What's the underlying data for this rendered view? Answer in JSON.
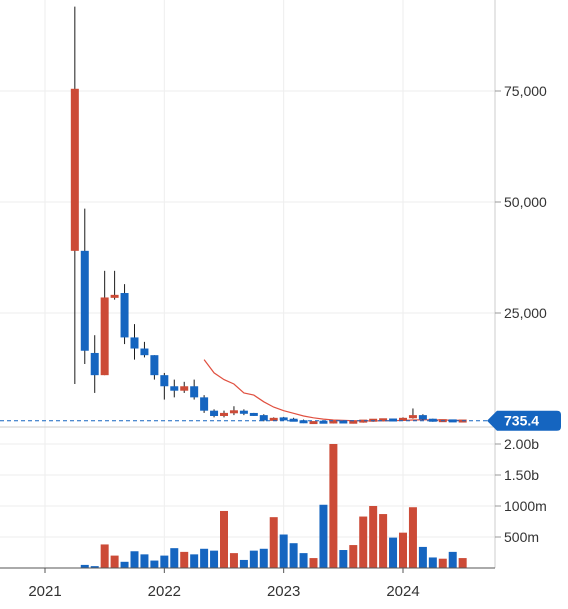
{
  "chart_data": {
    "type": "candlestick",
    "title": "",
    "colors": {
      "up": "#cc4b37",
      "down": "#1565c0",
      "ma": "#e05040",
      "last": "#1565c0",
      "grid": "#eeeeee",
      "axis": "#cccccc"
    },
    "last_price": 735.4,
    "last_price_label": "735.4",
    "price_axis": {
      "ticks": [
        25000,
        50000,
        75000
      ],
      "labels": [
        "25,000",
        "50,000",
        "75,000"
      ],
      "range": [
        0,
        95000
      ]
    },
    "volume_axis": {
      "ticks": [
        500000000,
        1000000000,
        1500000000,
        2000000000
      ],
      "labels": [
        "500m",
        "1000m",
        "1.50b",
        "2.00b"
      ],
      "range": [
        0,
        2050000000
      ]
    },
    "x_axis": {
      "ticks": [
        "2021-01",
        "2022-01",
        "2023-01",
        "2024-01"
      ],
      "labels": [
        "2021",
        "2022",
        "2023",
        "2024"
      ],
      "range": [
        "2020-09",
        "2024-09"
      ]
    },
    "candles": [
      {
        "date": "2021-04",
        "open": 39000,
        "high": 94000,
        "low": 9000,
        "close": 75500,
        "volume": 0
      },
      {
        "date": "2021-05",
        "open": 39000,
        "high": 48500,
        "low": 13500,
        "close": 16500,
        "volume": 50000000
      },
      {
        "date": "2021-06",
        "open": 16000,
        "high": 20000,
        "low": 7000,
        "close": 11000,
        "volume": 30000000
      },
      {
        "date": "2021-07",
        "open": 11000,
        "high": 34500,
        "low": 11000,
        "close": 28500,
        "volume": 380000000
      },
      {
        "date": "2021-08",
        "open": 28500,
        "high": 34500,
        "low": 28000,
        "close": 29000,
        "volume": 200000000
      },
      {
        "date": "2021-09",
        "open": 29500,
        "high": 31500,
        "low": 18000,
        "close": 19500,
        "volume": 100000000
      },
      {
        "date": "2021-10",
        "open": 19500,
        "high": 22500,
        "low": 14500,
        "close": 17000,
        "volume": 270000000
      },
      {
        "date": "2021-11",
        "open": 17000,
        "high": 18500,
        "low": 15000,
        "close": 15500,
        "volume": 220000000
      },
      {
        "date": "2021-12",
        "open": 15500,
        "high": 15500,
        "low": 10000,
        "close": 11000,
        "volume": 120000000
      },
      {
        "date": "2022-01",
        "open": 11000,
        "high": 11500,
        "low": 5500,
        "close": 8500,
        "volume": 200000000
      },
      {
        "date": "2022-02",
        "open": 8500,
        "high": 10000,
        "low": 6000,
        "close": 7500,
        "volume": 320000000
      },
      {
        "date": "2022-03",
        "open": 7500,
        "high": 9500,
        "low": 7000,
        "close": 8500,
        "volume": 260000000
      },
      {
        "date": "2022-04",
        "open": 8500,
        "high": 10000,
        "low": 5500,
        "close": 6000,
        "volume": 220000000
      },
      {
        "date": "2022-05",
        "open": 6000,
        "high": 6500,
        "low": 2500,
        "close": 3000,
        "volume": 310000000
      },
      {
        "date": "2022-06",
        "open": 3000,
        "high": 3300,
        "low": 1500,
        "close": 1800,
        "volume": 280000000
      },
      {
        "date": "2022-07",
        "open": 1800,
        "high": 3000,
        "low": 1500,
        "close": 2500,
        "volume": 920000000
      },
      {
        "date": "2022-08",
        "open": 2500,
        "high": 4000,
        "low": 2000,
        "close": 3000,
        "volume": 240000000
      },
      {
        "date": "2022-09",
        "open": 3000,
        "high": 3300,
        "low": 2000,
        "close": 2300,
        "volume": 130000000
      },
      {
        "date": "2022-10",
        "open": 2300,
        "high": 2500,
        "low": 1800,
        "close": 2000,
        "volume": 280000000
      },
      {
        "date": "2022-11",
        "open": 2000,
        "high": 2200,
        "low": 600,
        "close": 800,
        "volume": 310000000
      },
      {
        "date": "2022-12",
        "open": 800,
        "high": 1500,
        "low": 700,
        "close": 1300,
        "volume": 820000000
      },
      {
        "date": "2023-01",
        "open": 1300,
        "high": 1600,
        "low": 800,
        "close": 1000,
        "volume": 540000000
      },
      {
        "date": "2023-02",
        "open": 1000,
        "high": 1400,
        "low": 600,
        "close": 700,
        "volume": 400000000
      },
      {
        "date": "2023-03",
        "open": 700,
        "high": 1000,
        "low": 200,
        "close": 300,
        "volume": 240000000
      },
      {
        "date": "2023-04",
        "open": 300,
        "high": 500,
        "low": 200,
        "close": 350,
        "volume": 160000000
      },
      {
        "date": "2023-05",
        "open": 500,
        "high": 800,
        "low": 200,
        "close": 300,
        "volume": 1020000000
      },
      {
        "date": "2023-06",
        "open": 300,
        "high": 700,
        "low": 100,
        "close": 600,
        "volume": 2000000000
      },
      {
        "date": "2023-07",
        "open": 600,
        "high": 800,
        "low": 200,
        "close": 300,
        "volume": 290000000
      },
      {
        "date": "2023-08",
        "open": 300,
        "high": 600,
        "low": 100,
        "close": 500,
        "volume": 370000000
      },
      {
        "date": "2023-09",
        "open": 500,
        "high": 900,
        "low": 300,
        "close": 800,
        "volume": 830000000
      },
      {
        "date": "2023-10",
        "open": 800,
        "high": 1000,
        "low": 500,
        "close": 900,
        "volume": 1000000000
      },
      {
        "date": "2023-11",
        "open": 900,
        "high": 1100,
        "low": 600,
        "close": 1000,
        "volume": 870000000
      },
      {
        "date": "2023-12",
        "open": 1000,
        "high": 1200,
        "low": 600,
        "close": 800,
        "volume": 490000000
      },
      {
        "date": "2024-01",
        "open": 800,
        "high": 1500,
        "low": 700,
        "close": 1300,
        "volume": 570000000
      },
      {
        "date": "2024-02",
        "open": 1300,
        "high": 3500,
        "low": 1200,
        "close": 2000,
        "volume": 980000000
      },
      {
        "date": "2024-03",
        "open": 2000,
        "high": 2200,
        "low": 900,
        "close": 1000,
        "volume": 340000000
      },
      {
        "date": "2024-04",
        "open": 1000,
        "high": 1200,
        "low": 500,
        "close": 700,
        "volume": 170000000
      },
      {
        "date": "2024-05",
        "open": 700,
        "high": 1000,
        "low": 600,
        "close": 800,
        "volume": 150000000
      },
      {
        "date": "2024-06",
        "open": 800,
        "high": 900,
        "low": 500,
        "close": 600,
        "volume": 260000000
      },
      {
        "date": "2024-07",
        "open": 600,
        "high": 800,
        "low": 500,
        "close": 735.4,
        "volume": 160000000
      }
    ],
    "moving_average": [
      {
        "date": "2022-05",
        "value": 14500
      },
      {
        "date": "2022-06",
        "value": 11500
      },
      {
        "date": "2022-07",
        "value": 10000
      },
      {
        "date": "2022-08",
        "value": 9000
      },
      {
        "date": "2022-09",
        "value": 7000
      },
      {
        "date": "2022-10",
        "value": 6500
      },
      {
        "date": "2022-11",
        "value": 5000
      },
      {
        "date": "2022-12",
        "value": 3800
      },
      {
        "date": "2023-01",
        "value": 3000
      },
      {
        "date": "2023-02",
        "value": 2400
      },
      {
        "date": "2023-03",
        "value": 1800
      },
      {
        "date": "2023-04",
        "value": 1400
      },
      {
        "date": "2023-05",
        "value": 1100
      },
      {
        "date": "2023-06",
        "value": 900
      },
      {
        "date": "2023-07",
        "value": 800
      },
      {
        "date": "2023-08",
        "value": 750
      },
      {
        "date": "2023-09",
        "value": 700
      },
      {
        "date": "2023-10",
        "value": 700
      },
      {
        "date": "2023-11",
        "value": 720
      },
      {
        "date": "2023-12",
        "value": 750
      },
      {
        "date": "2024-01",
        "value": 800
      },
      {
        "date": "2024-02",
        "value": 900
      },
      {
        "date": "2024-03",
        "value": 950
      },
      {
        "date": "2024-04",
        "value": 950
      },
      {
        "date": "2024-05",
        "value": 900
      },
      {
        "date": "2024-06",
        "value": 850
      },
      {
        "date": "2024-07",
        "value": 800
      }
    ]
  }
}
